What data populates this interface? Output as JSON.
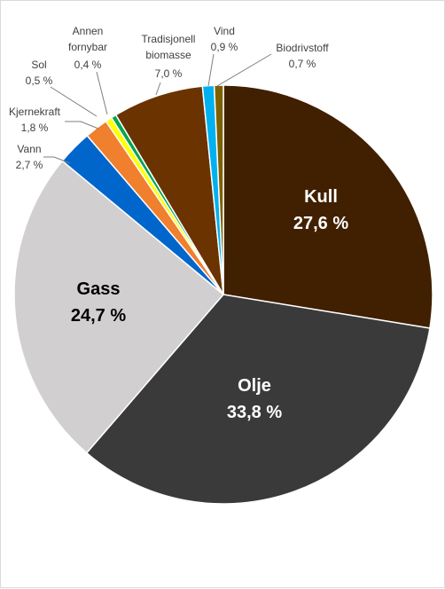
{
  "chart_data": {
    "type": "pie",
    "title": "",
    "slices": [
      {
        "name": "Kull",
        "value": 27.6,
        "label": "27,6 %",
        "color": "#402000",
        "label_color": "#ffffff",
        "inside": true
      },
      {
        "name": "Olje",
        "value": 33.8,
        "label": "33,8 %",
        "color": "#3a3a3a",
        "label_color": "#ffffff",
        "inside": true
      },
      {
        "name": "Gass",
        "value": 24.7,
        "label": "24,7 %",
        "color": "#d1cfd0",
        "label_color": "#000000",
        "inside": true
      },
      {
        "name": "Vann",
        "value": 2.7,
        "label": "2,7 %",
        "color": "#0066cc",
        "inside": false
      },
      {
        "name": "Kjernekraft",
        "value": 1.8,
        "label": "1,8 %",
        "color": "#f07f2e",
        "inside": false
      },
      {
        "name": "Sol",
        "value": 0.5,
        "label": "0,5 %",
        "color": "#ffff00",
        "inside": false
      },
      {
        "name": "Annen fornybar",
        "value": 0.4,
        "label": "0,4 %",
        "color": "#00a650",
        "inside": false
      },
      {
        "name": "Tradisjonell biomasse",
        "value": 7.0,
        "label": "7,0 %",
        "color": "#6b3300",
        "inside": false
      },
      {
        "name": "Vind",
        "value": 0.9,
        "label": "0,9 %",
        "color": "#00b0f0",
        "inside": false
      },
      {
        "name": "Biodrivstoff",
        "value": 0.7,
        "label": "0,7 %",
        "color": "#7f6000",
        "inside": false
      }
    ],
    "start_angle_deg": 0,
    "direction": "clockwise",
    "legend": "none"
  }
}
